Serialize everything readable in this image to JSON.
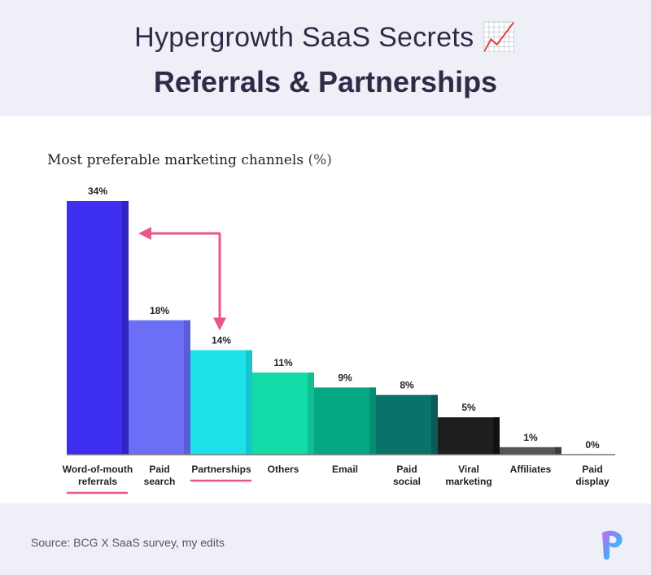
{
  "header": {
    "title": "Hypergrowth SaaS Secrets",
    "title_emoji": "📈",
    "subtitle": "Referrals & Partnerships"
  },
  "footer": {
    "source": "Source: BCG X SaaS survey, my edits",
    "logo_icon": "brand-logo-icon"
  },
  "chart_data": {
    "type": "bar",
    "title": "Most preferable marketing channels",
    "title_unit": "(%)",
    "xlabel": "",
    "ylabel": "",
    "ylim": [
      0,
      34
    ],
    "grid": false,
    "categories": [
      [
        "Word-of-mouth",
        "referrals"
      ],
      [
        "Paid",
        "search"
      ],
      [
        "Partnerships"
      ],
      [
        "Others"
      ],
      [
        "Email"
      ],
      [
        "Paid",
        "social"
      ],
      [
        "Viral",
        "marketing"
      ],
      [
        "Affiliates"
      ],
      [
        "Paid",
        "display"
      ]
    ],
    "values": [
      34,
      18,
      14,
      11,
      9,
      8,
      5,
      1,
      0
    ],
    "data_labels": [
      "34%",
      "18%",
      "14%",
      "11%",
      "9%",
      "8%",
      "5%",
      "1%",
      "0%"
    ],
    "colors": [
      "#3d2ef0",
      "#6b6ff5",
      "#1ee2ea",
      "#12dba8",
      "#04a884",
      "#0a7369",
      "#1e1e1e",
      "#555555",
      "#cccccc"
    ],
    "shadow_colors": [
      "#3223c4",
      "#5a5ed6",
      "#17c6cc",
      "#0fbf92",
      "#038f70",
      "#075c54",
      "#111111",
      "#3e3e3e",
      "#aaaaaa"
    ],
    "highlighted_categories": [
      0,
      2
    ],
    "highlight_color": "#e8578c"
  }
}
